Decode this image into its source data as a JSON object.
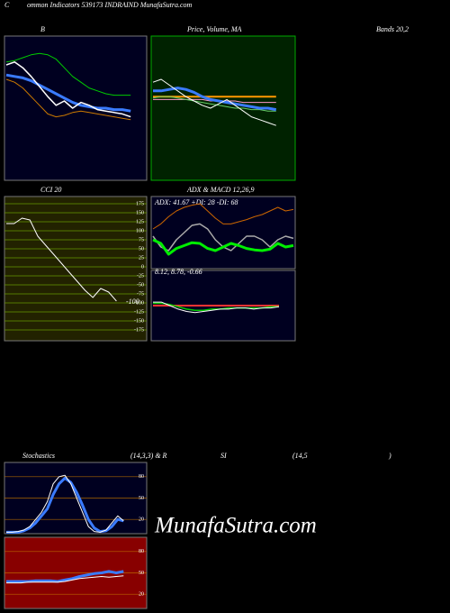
{
  "header": {
    "letter": "C",
    "title": "ommon Indicators 539173 INDRAIND MunafaSutra.com"
  },
  "watermark": "MunafaSutra.com",
  "chart_data": [
    {
      "type": "line",
      "title": "B",
      "subtitle": "Bands 20,2",
      "ylim": [
        0,
        100
      ],
      "series": [
        {
          "color": "#00cc00",
          "width": 1,
          "values": [
            82,
            83,
            85,
            87,
            88,
            87,
            84,
            78,
            72,
            68,
            64,
            62,
            60,
            59,
            59,
            59
          ]
        },
        {
          "color": "#cc7a00",
          "width": 1,
          "values": [
            70,
            68,
            64,
            58,
            52,
            46,
            44,
            45,
            47,
            48,
            47,
            46,
            45,
            44,
            43,
            42
          ]
        },
        {
          "color": "#3a7bff",
          "width": 3,
          "values": [
            73,
            72,
            71,
            69,
            66,
            63,
            60,
            57,
            54,
            52,
            51,
            50,
            50,
            49,
            49,
            48
          ]
        },
        {
          "color": "#ffffff",
          "width": 1.5,
          "values": [
            80,
            82,
            78,
            72,
            65,
            58,
            52,
            55,
            50,
            54,
            52,
            49,
            48,
            47,
            46,
            44
          ]
        }
      ]
    },
    {
      "type": "line",
      "title": "Price, Volume, MA",
      "ylim": [
        0,
        100
      ],
      "series": [
        {
          "color": "#ff9900",
          "width": 2,
          "values": [
            58,
            58,
            58,
            58,
            58,
            58,
            58,
            58,
            58,
            58,
            58,
            58,
            58,
            58,
            58,
            58
          ]
        },
        {
          "color": "#ff99cc",
          "width": 1,
          "values": [
            56,
            56,
            56,
            56,
            56,
            56,
            56,
            55,
            55,
            55,
            55,
            54,
            54,
            54,
            54,
            54
          ]
        },
        {
          "color": "#66cc66",
          "width": 1,
          "values": [
            57,
            58,
            58,
            57,
            56,
            55,
            54,
            53,
            52,
            51,
            50,
            50,
            49,
            49,
            48,
            48
          ]
        },
        {
          "color": "#3a7bff",
          "width": 3,
          "values": [
            62,
            62,
            63,
            64,
            63,
            61,
            58,
            56,
            55,
            54,
            53,
            52,
            51,
            50,
            50,
            49
          ]
        },
        {
          "color": "#ffffff",
          "width": 1,
          "values": [
            68,
            70,
            66,
            62,
            58,
            55,
            52,
            50,
            53,
            56,
            52,
            48,
            44,
            42,
            40,
            38
          ]
        }
      ]
    },
    {
      "type": "line",
      "title": "CCI 20",
      "annotation": "-100",
      "ylim": [
        -205,
        195
      ],
      "grid": true,
      "yticks": [
        175,
        150,
        125,
        100,
        75,
        50,
        25,
        0,
        -25,
        -50,
        -75,
        -100,
        -125,
        -150,
        -175
      ],
      "series": [
        {
          "color": "#ffffff",
          "width": 1,
          "values": [
            120,
            120,
            135,
            130,
            85,
            60,
            35,
            10,
            -15,
            -40,
            -65,
            -85,
            -60,
            -70,
            -95
          ]
        }
      ]
    },
    {
      "type": "line",
      "title": "ADX  & MACD 12,26,9",
      "annotation": "ADX: 41.67 +DI: 28 -DI: 68",
      "ylim": [
        0,
        100
      ],
      "series": [
        {
          "color": "#cc6600",
          "width": 1,
          "values": [
            55,
            62,
            72,
            80,
            85,
            88,
            90,
            80,
            70,
            62,
            62,
            65,
            68,
            72,
            75,
            80,
            85,
            80,
            82
          ]
        },
        {
          "color": "#aaaaaa",
          "width": 1.5,
          "values": [
            45,
            30,
            25,
            40,
            50,
            60,
            62,
            55,
            40,
            30,
            25,
            35,
            45,
            45,
            40,
            30,
            40,
            45,
            42
          ]
        },
        {
          "color": "#00ee00",
          "width": 3,
          "values": [
            40,
            35,
            20,
            28,
            32,
            36,
            35,
            28,
            25,
            30,
            35,
            32,
            28,
            26,
            25,
            27,
            35,
            30,
            32
          ]
        }
      ]
    },
    {
      "type": "line",
      "annotation": "8.12, 8.78, -0.66",
      "ylim": [
        -30,
        30
      ],
      "series": [
        {
          "color": "#ff3333",
          "width": 2,
          "values": [
            0,
            0,
            0,
            0,
            0,
            0,
            0,
            0,
            0,
            0,
            0,
            0,
            0,
            0,
            0,
            0
          ]
        },
        {
          "color": "#00cc00",
          "width": 1.5,
          "values": [
            2,
            2,
            1,
            -1,
            -3,
            -4,
            -4,
            -3,
            -3,
            -2,
            -2,
            -2,
            -2,
            -2,
            -1,
            -1
          ]
        },
        {
          "color": "#ffffff",
          "width": 1,
          "values": [
            3,
            3,
            0,
            -3,
            -5,
            -6,
            -5,
            -4,
            -3,
            -3,
            -2,
            -2,
            -3,
            -2,
            -2,
            -1
          ]
        }
      ]
    },
    {
      "type": "line",
      "title": "Stochastics",
      "subtitle": "(14,3,3) & R",
      "ylim": [
        0,
        100
      ],
      "grid": true,
      "yticks": [
        80,
        50,
        20
      ],
      "series": [
        {
          "color": "#3a7bff",
          "width": 3,
          "values": [
            2,
            2,
            2,
            4,
            8,
            15,
            25,
            35,
            55,
            70,
            78,
            72,
            58,
            40,
            20,
            8,
            3,
            4,
            10,
            20,
            18
          ]
        },
        {
          "color": "#ffffff",
          "width": 1,
          "values": [
            2,
            2,
            3,
            5,
            10,
            20,
            30,
            45,
            70,
            80,
            82,
            70,
            50,
            30,
            10,
            3,
            2,
            5,
            15,
            25,
            18
          ]
        }
      ]
    },
    {
      "type": "line",
      "title": "SI",
      "subtitle": "(14,5",
      "note": ")",
      "ylim": [
        0,
        100
      ],
      "grid": true,
      "yticks": [
        80,
        50,
        20
      ],
      "series": [
        {
          "color": "#3a7bff",
          "width": 3,
          "values": [
            38,
            38,
            38,
            38,
            39,
            39,
            39,
            38,
            40,
            42,
            45,
            47,
            49,
            50,
            52,
            50,
            52
          ]
        },
        {
          "color": "#ffffff",
          "width": 1,
          "values": [
            36,
            36,
            36,
            37,
            37,
            37,
            37,
            37,
            38,
            40,
            42,
            43,
            44,
            45,
            44,
            45,
            46
          ]
        }
      ]
    }
  ]
}
